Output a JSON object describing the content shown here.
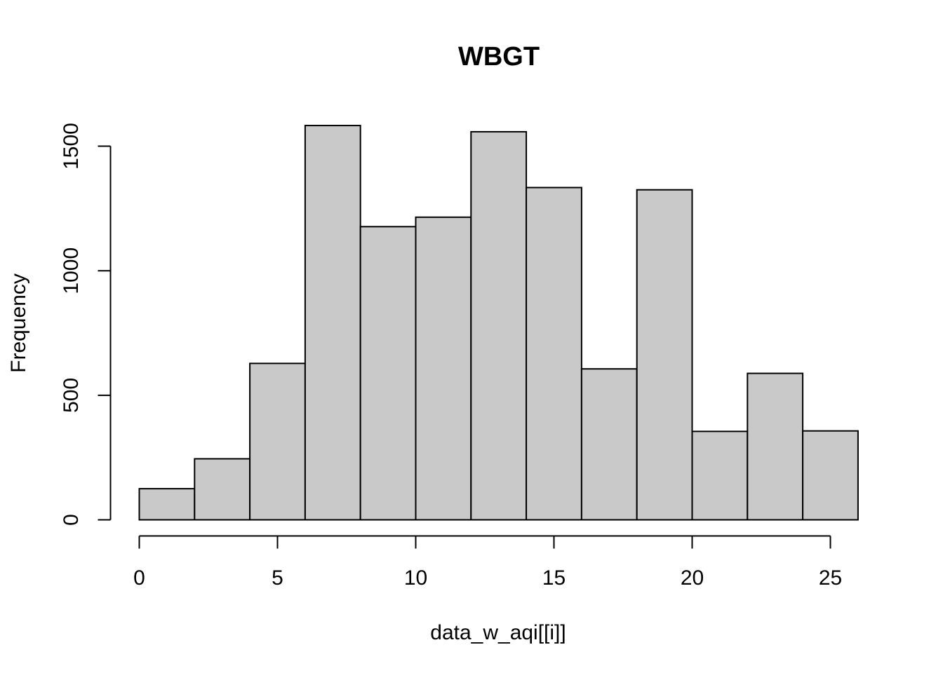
{
  "chart_data": {
    "type": "bar",
    "title": "WBGT",
    "xlabel": "data_w_aqi[[i]]",
    "ylabel": "Frequency",
    "bin_edges": [
      0,
      2,
      4,
      6,
      8,
      10,
      12,
      14,
      16,
      18,
      20,
      22,
      24,
      26
    ],
    "values": [
      125,
      245,
      628,
      1583,
      1177,
      1215,
      1558,
      1334,
      606,
      1325,
      355,
      588,
      357
    ],
    "xlim": [
      0,
      26
    ],
    "ylim": [
      0,
      1600
    ],
    "x_ticks": [
      0,
      5,
      10,
      15,
      20,
      25
    ],
    "y_ticks": [
      0,
      500,
      1000,
      1500
    ],
    "bar_color": "#c9c9c9",
    "grid": false
  }
}
